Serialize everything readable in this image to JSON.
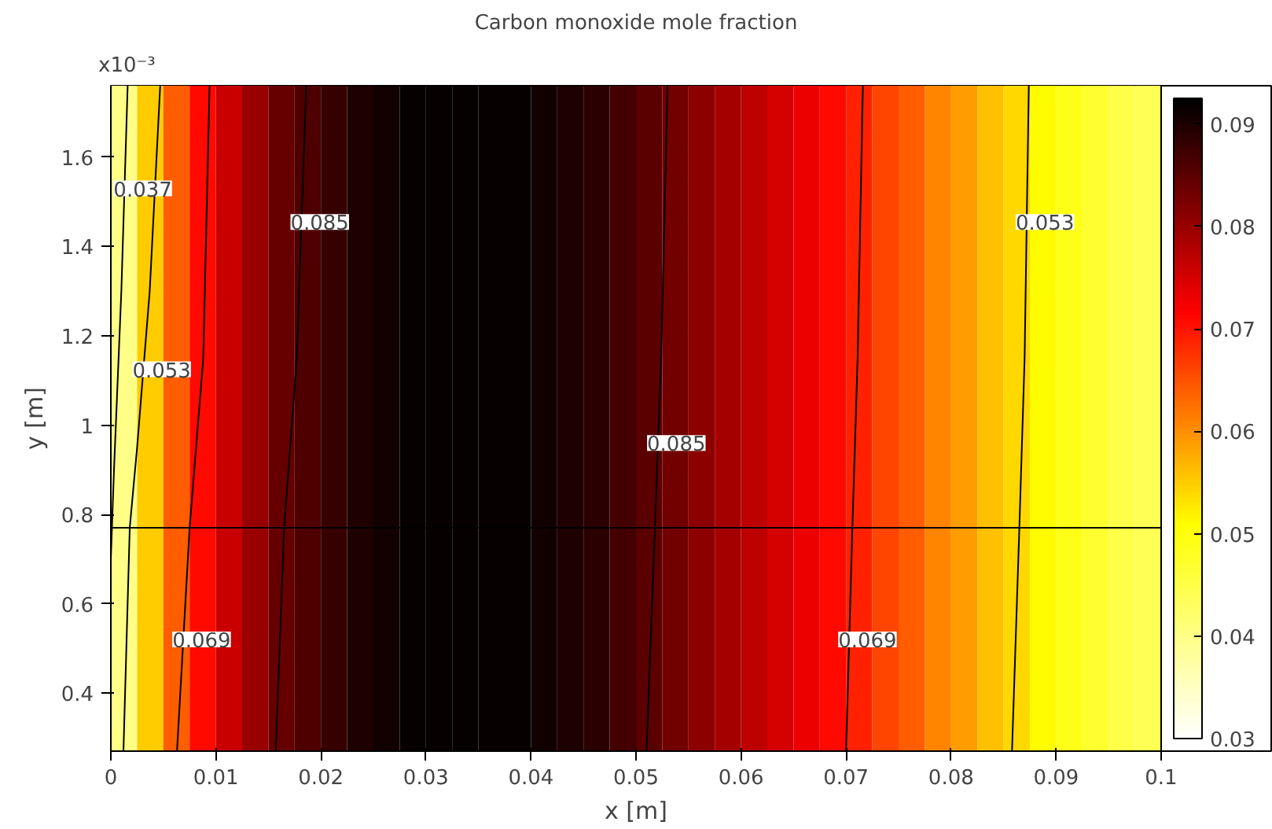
{
  "chart_data": {
    "type": "heatmap",
    "title": "Carbon monoxide mole fraction",
    "xlabel": "x [m]",
    "ylabel": "y [m]",
    "x": [
      0.00125,
      0.00375,
      0.00625,
      0.00875,
      0.01125,
      0.01375,
      0.01625,
      0.01875,
      0.02125,
      0.02375,
      0.02625,
      0.02875,
      0.03125,
      0.03375,
      0.03625,
      0.03875,
      0.04125,
      0.04375,
      0.04625,
      0.04875,
      0.05125,
      0.05375,
      0.05625,
      0.05875,
      0.06125,
      0.06375,
      0.06625,
      0.06875,
      0.07125,
      0.07375,
      0.07625,
      0.07875,
      0.08125,
      0.08375,
      0.08625,
      0.08875,
      0.09125,
      0.09375,
      0.09625,
      0.09875
    ],
    "cells": [
      [
        0.04,
        0.055,
        0.064,
        0.071,
        0.076,
        0.08,
        0.084,
        0.086,
        0.088,
        0.09,
        0.091,
        0.092,
        0.092,
        0.092,
        0.092,
        0.092,
        0.091,
        0.09,
        0.089,
        0.087,
        0.085,
        0.083,
        0.081,
        0.079,
        0.077,
        0.075,
        0.073,
        0.071,
        0.069,
        0.066,
        0.064,
        0.061,
        0.059,
        0.056,
        0.054,
        0.051,
        0.049,
        0.047,
        0.045,
        0.044
      ]
    ],
    "colors": [
      "#ffffff",
      "#ffff00",
      "#ff0000",
      "#000000"
    ],
    "clim": [
      0.03,
      0.0925
    ],
    "cticks": [
      0.03,
      0.04,
      0.05,
      0.06,
      0.07,
      0.08,
      0.09
    ],
    "xlim": [
      0,
      0.1
    ],
    "xticks": [
      0,
      0.01,
      0.02,
      0.03,
      0.04,
      0.05,
      0.06,
      0.07,
      0.08,
      0.09,
      0.1
    ],
    "ylim": [
      0.27,
      1.76
    ],
    "yticks": [
      0.4,
      0.6,
      0.8,
      1,
      1.2,
      1.4,
      1.6
    ],
    "series": [
      {
        "type": "line",
        "name": "0.037",
        "color": "#000000",
        "x": [
          0.0016,
          0.001,
          0.0003,
          0.0
        ],
        "values": [
          1.76,
          1.3,
          0.9,
          0.7
        ]
      },
      {
        "type": "line",
        "name": "0.053",
        "color": "#000000",
        "x": [
          0.0047,
          0.0037,
          0.0025,
          0.0018,
          0.0012
        ],
        "values": [
          1.76,
          1.3,
          0.95,
          0.77,
          0.27
        ]
      },
      {
        "type": "line",
        "name": "0.069",
        "color": "#000000",
        "x": [
          0.0094,
          0.0088,
          0.0075,
          0.0063
        ],
        "values": [
          1.76,
          1.15,
          0.77,
          0.27
        ]
      },
      {
        "type": "line",
        "name": "0.085",
        "color": "#000000",
        "x": [
          0.0186,
          0.0177,
          0.0165,
          0.0157
        ],
        "values": [
          1.76,
          1.15,
          0.77,
          0.27
        ]
      },
      {
        "type": "line",
        "name": "0.085",
        "color": "#000000",
        "x": [
          0.053,
          0.0524,
          0.0518,
          0.051
        ],
        "values": [
          1.76,
          1.15,
          0.77,
          0.27
        ]
      },
      {
        "type": "line",
        "name": "0.069",
        "color": "#000000",
        "x": [
          0.0716,
          0.0711,
          0.0706,
          0.07
        ],
        "values": [
          1.76,
          1.15,
          0.77,
          0.27
        ]
      },
      {
        "type": "line",
        "name": "0.053",
        "color": "#000000",
        "x": [
          0.0874,
          0.087,
          0.0865,
          0.0858
        ],
        "values": [
          1.76,
          1.15,
          0.77,
          0.27
        ]
      }
    ],
    "ref_lines": [
      {
        "axis": "y",
        "value": 0.77,
        "color": "#000000"
      }
    ],
    "annotations": [
      "x10⁻³"
    ]
  }
}
